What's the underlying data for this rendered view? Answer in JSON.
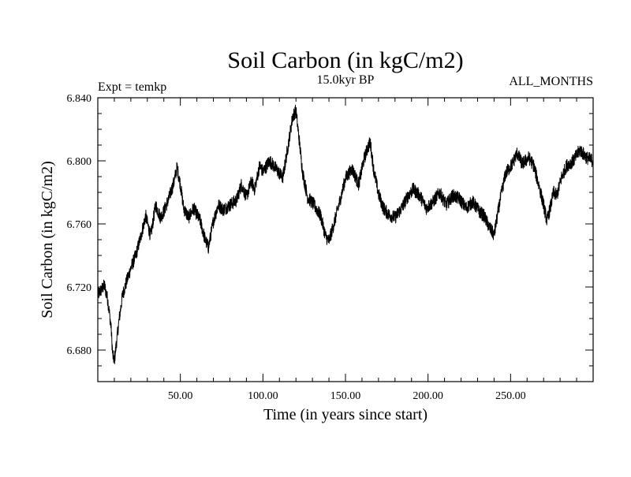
{
  "chart_data": {
    "type": "line",
    "title": "Soil Carbon (in kgC/m2)",
    "header_left": "Expt = temkp",
    "header_center": "15.0kyr BP",
    "header_right": "ALL_MONTHS",
    "xlabel": "Time (in years since start)",
    "ylabel": "Soil Carbon (in kgC/m2)",
    "xlim": [
      0,
      300
    ],
    "ylim": [
      6.66,
      6.84
    ],
    "x_ticks": [
      50,
      100,
      150,
      200,
      250
    ],
    "x_tick_labels": [
      "50.00",
      "100.00",
      "150.00",
      "200.00",
      "250.00"
    ],
    "y_ticks": [
      6.68,
      6.72,
      6.76,
      6.8,
      6.84
    ],
    "y_tick_labels": [
      "6.680",
      "6.720",
      "6.760",
      "6.800",
      "6.840"
    ],
    "grid": false,
    "line_color": "#000000",
    "series": [
      {
        "name": "Soil Carbon",
        "x": [
          0,
          2,
          4,
          6,
          8,
          9,
          10,
          11,
          13,
          15,
          17,
          20,
          23,
          26,
          29,
          32,
          35,
          38,
          40,
          43,
          46,
          48,
          50,
          52,
          55,
          58,
          62,
          65,
          67,
          70,
          73,
          76,
          80,
          84,
          87,
          90,
          93,
          95,
          98,
          100,
          104,
          108,
          112,
          115,
          118,
          120,
          122,
          124,
          127,
          131,
          135,
          138,
          140,
          143,
          146,
          150,
          154,
          158,
          161,
          163,
          165,
          167,
          170,
          173,
          176,
          180,
          184,
          188,
          191,
          195,
          199,
          203,
          207,
          211,
          215,
          219,
          223,
          227,
          231,
          234,
          237,
          240,
          242,
          244,
          247,
          251,
          254,
          257,
          261,
          264,
          267,
          270,
          272,
          274,
          276,
          278,
          281,
          284,
          288,
          292,
          296,
          300
        ],
        "y": [
          6.715,
          6.718,
          6.721,
          6.712,
          6.695,
          6.677,
          6.673,
          6.682,
          6.7,
          6.715,
          6.722,
          6.732,
          6.74,
          6.752,
          6.765,
          6.752,
          6.772,
          6.764,
          6.768,
          6.776,
          6.786,
          6.796,
          6.785,
          6.77,
          6.764,
          6.77,
          6.762,
          6.75,
          6.745,
          6.762,
          6.772,
          6.769,
          6.772,
          6.775,
          6.785,
          6.777,
          6.787,
          6.782,
          6.797,
          6.793,
          6.8,
          6.795,
          6.789,
          6.808,
          6.828,
          6.832,
          6.813,
          6.793,
          6.777,
          6.772,
          6.765,
          6.752,
          6.749,
          6.76,
          6.772,
          6.789,
          6.795,
          6.785,
          6.8,
          6.807,
          6.812,
          6.795,
          6.779,
          6.77,
          6.766,
          6.764,
          6.77,
          6.778,
          6.782,
          6.778,
          6.77,
          6.774,
          6.78,
          6.772,
          6.778,
          6.776,
          6.77,
          6.774,
          6.768,
          6.765,
          6.758,
          6.753,
          6.765,
          6.777,
          6.792,
          6.798,
          6.805,
          6.798,
          6.802,
          6.797,
          6.785,
          6.772,
          6.762,
          6.77,
          6.78,
          6.778,
          6.79,
          6.797,
          6.8,
          6.807,
          6.802,
          6.8
        ]
      }
    ]
  }
}
